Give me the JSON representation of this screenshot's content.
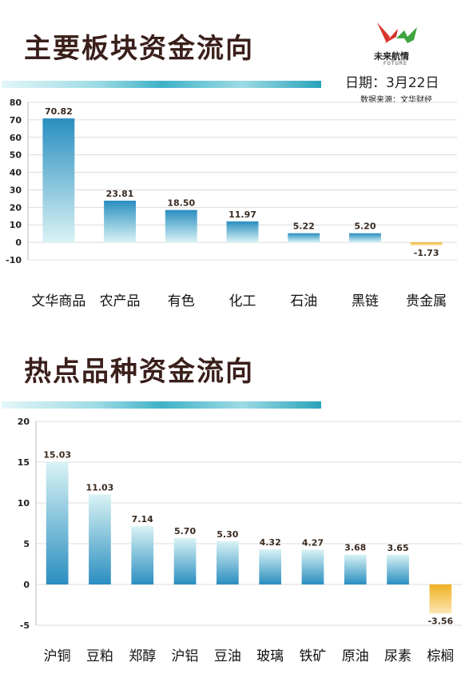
{
  "header": {
    "logo_text": "未来航情",
    "logo_sub": "FUTURE",
    "date_label": "日期：3月22日",
    "source_label": "数据来源：文华财经"
  },
  "section1": {
    "title": "主要板块资金流向"
  },
  "section2": {
    "title": "热点品种资金流向"
  },
  "colors": {
    "positive": "#2a8ec0",
    "positive_light": "#d9f3f5",
    "negative": "#f0b020",
    "negative_light": "#fbe7b6",
    "stripe": "#6cc8d8"
  },
  "chart_data": [
    {
      "type": "bar",
      "categories": [
        "文华商品",
        "农产品",
        "有色",
        "化工",
        "石油",
        "黑链",
        "贵金属"
      ],
      "values": [
        70.82,
        23.81,
        18.5,
        11.97,
        5.22,
        5.2,
        -1.73
      ],
      "value_labels": [
        "70.82",
        "23.81",
        "18.50",
        "11.97",
        "5.22",
        "5.20",
        "-1.73"
      ],
      "ylim": [
        -10,
        80
      ],
      "yticks": [
        -10,
        0,
        10,
        20,
        30,
        40,
        50,
        60,
        70,
        80
      ],
      "grid": true
    },
    {
      "type": "bar",
      "categories": [
        "沪铜",
        "豆粕",
        "郑醇",
        "沪铝",
        "豆油",
        "玻璃",
        "铁矿",
        "原油",
        "尿素",
        "棕榈"
      ],
      "values": [
        15.03,
        11.03,
        7.14,
        5.7,
        5.3,
        4.32,
        4.27,
        3.68,
        3.65,
        -3.56
      ],
      "value_labels": [
        "15.03",
        "11.03",
        "7.14",
        "5.70",
        "5.30",
        "4.32",
        "4.27",
        "3.68",
        "3.65",
        "-3.56"
      ],
      "ylim": [
        -5,
        20
      ],
      "yticks": [
        -5,
        0,
        5,
        10,
        15,
        20
      ],
      "grid": true
    }
  ]
}
